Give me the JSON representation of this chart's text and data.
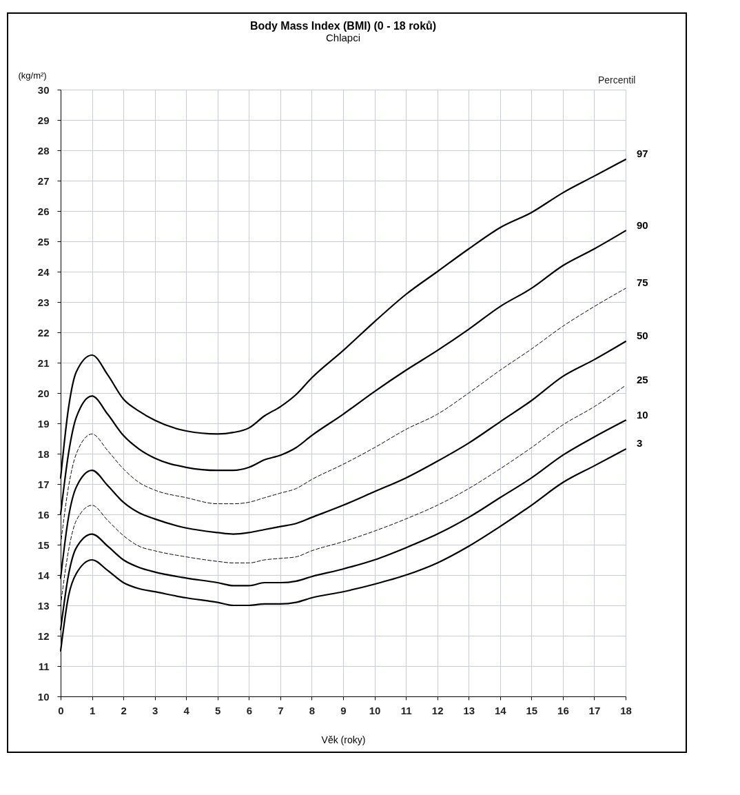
{
  "chart_data": {
    "type": "line",
    "title": "Body Mass Index (BMI) (0 - 18 roků)",
    "subtitle": "Chlapci",
    "xlabel": "Věk (roky)",
    "ylabel": "(kg/m²)",
    "legend_title": "Percentil",
    "x": [
      0,
      0.25,
      0.5,
      1,
      1.5,
      2,
      2.5,
      3,
      4,
      5,
      5.5,
      6,
      6.5,
      7,
      7.5,
      8,
      9,
      10,
      11,
      12,
      13,
      14,
      15,
      16,
      17,
      18
    ],
    "xlim": [
      0,
      18
    ],
    "xticks": [
      0,
      1,
      2,
      3,
      4,
      5,
      6,
      7,
      8,
      9,
      10,
      11,
      12,
      13,
      14,
      15,
      16,
      17,
      18
    ],
    "ylim": [
      10,
      30
    ],
    "yticks": [
      10,
      11,
      12,
      13,
      14,
      15,
      16,
      17,
      18,
      19,
      20,
      21,
      22,
      23,
      24,
      25,
      26,
      27,
      28,
      29,
      30
    ],
    "grid": true,
    "marker": "none",
    "series": [
      {
        "name": "97",
        "color": "#000000",
        "line_style": "solid",
        "values": [
          17.2,
          19.5,
          20.7,
          21.25,
          20.6,
          19.8,
          19.4,
          19.1,
          18.75,
          18.65,
          18.7,
          18.85,
          19.25,
          19.55,
          19.95,
          20.5,
          21.4,
          22.35,
          23.25,
          24.0,
          24.75,
          25.45,
          25.95,
          26.6,
          27.15,
          27.7
        ]
      },
      {
        "name": "90",
        "color": "#000000",
        "line_style": "solid",
        "values": [
          16.0,
          18.0,
          19.2,
          19.9,
          19.3,
          18.6,
          18.15,
          17.85,
          17.55,
          17.45,
          17.45,
          17.55,
          17.8,
          17.95,
          18.2,
          18.6,
          19.3,
          20.05,
          20.75,
          21.4,
          22.1,
          22.85,
          23.45,
          24.2,
          24.75,
          25.35
        ]
      },
      {
        "name": "75",
        "color": "#000000",
        "line_style": "dashed",
        "values": [
          15.0,
          16.9,
          18.0,
          18.65,
          18.1,
          17.5,
          17.05,
          16.8,
          16.55,
          16.35,
          16.35,
          16.4,
          16.55,
          16.7,
          16.85,
          17.15,
          17.65,
          18.2,
          18.8,
          19.3,
          20.0,
          20.75,
          21.45,
          22.2,
          22.85,
          23.45
        ]
      },
      {
        "name": "50",
        "color": "#000000",
        "line_style": "solid",
        "values": [
          13.9,
          15.9,
          16.9,
          17.45,
          16.95,
          16.4,
          16.05,
          15.85,
          15.55,
          15.4,
          15.35,
          15.4,
          15.5,
          15.6,
          15.7,
          15.9,
          16.3,
          16.75,
          17.2,
          17.75,
          18.35,
          19.05,
          19.75,
          20.55,
          21.1,
          21.7
        ]
      },
      {
        "name": "25",
        "color": "#000000",
        "line_style": "dashed",
        "values": [
          13.0,
          14.8,
          15.8,
          16.3,
          15.8,
          15.3,
          14.95,
          14.8,
          14.6,
          14.45,
          14.4,
          14.4,
          14.5,
          14.55,
          14.6,
          14.8,
          15.1,
          15.45,
          15.85,
          16.3,
          16.85,
          17.5,
          18.2,
          18.95,
          19.55,
          20.25
        ]
      },
      {
        "name": "10",
        "color": "#000000",
        "line_style": "solid",
        "values": [
          12.2,
          14.0,
          14.9,
          15.35,
          14.95,
          14.5,
          14.25,
          14.1,
          13.9,
          13.75,
          13.65,
          13.65,
          13.75,
          13.75,
          13.8,
          13.95,
          14.2,
          14.5,
          14.9,
          15.35,
          15.9,
          16.55,
          17.2,
          17.95,
          18.55,
          19.1
        ]
      },
      {
        "name": "3",
        "color": "#000000",
        "line_style": "solid",
        "values": [
          11.5,
          13.3,
          14.05,
          14.5,
          14.15,
          13.75,
          13.55,
          13.45,
          13.25,
          13.1,
          13.0,
          13.0,
          13.05,
          13.05,
          13.1,
          13.25,
          13.45,
          13.7,
          14.0,
          14.4,
          14.95,
          15.6,
          16.3,
          17.05,
          17.6,
          18.15
        ]
      }
    ]
  }
}
